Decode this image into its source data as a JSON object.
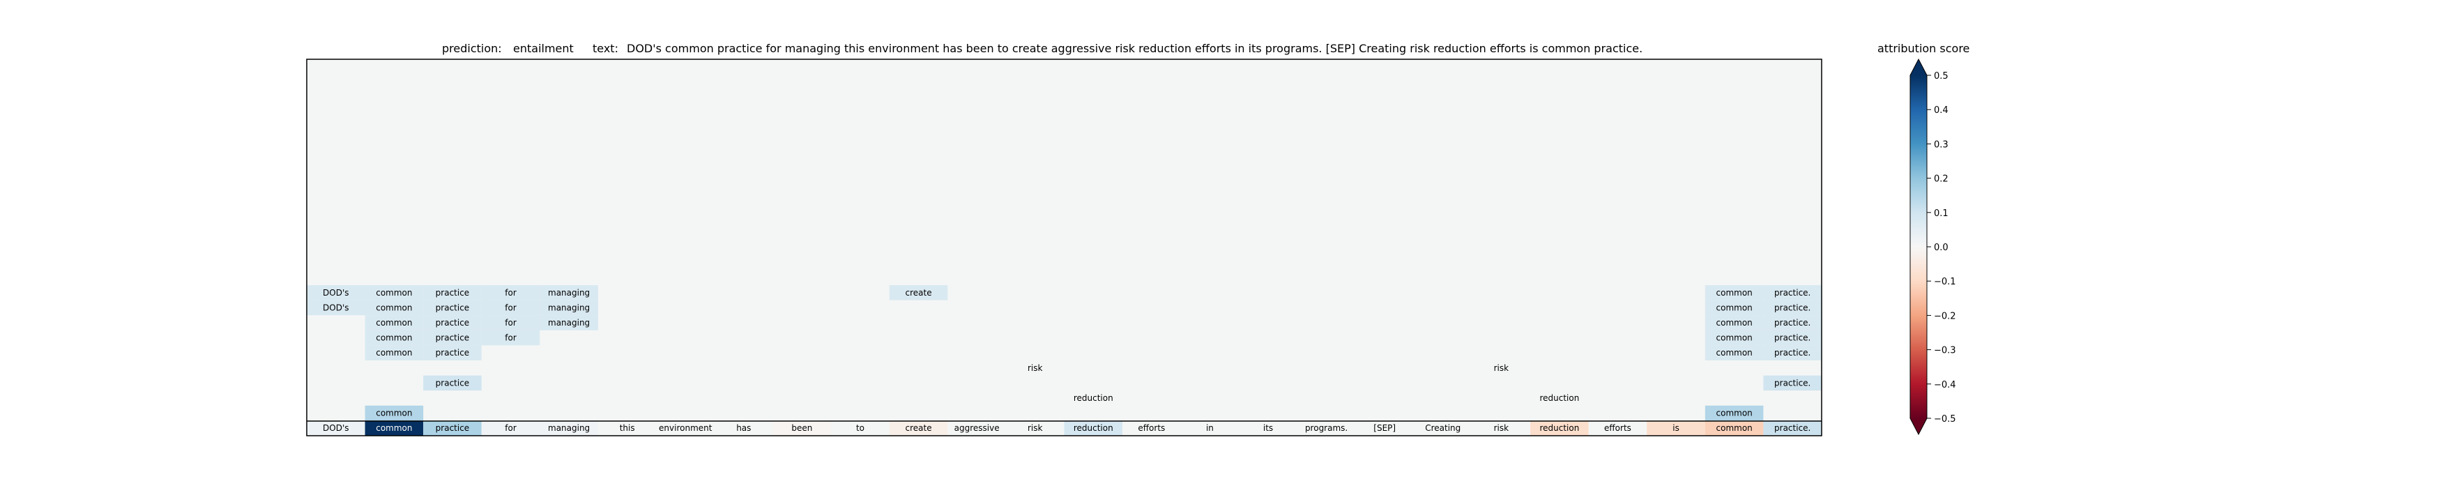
{
  "chart_data": {
    "type": "heatmap",
    "title": {
      "prediction_label": "prediction:",
      "prediction": "entailment",
      "text_label": "text:",
      "text": "DOD's common practice for managing this environment has been to create aggressive risk reduction efforts in its programs. [SEP] Creating risk reduction efforts is common practice."
    },
    "tokens": [
      "DOD's",
      "common",
      "practice",
      "for",
      "managing",
      "this",
      "environment",
      "has",
      "been",
      "to",
      "create",
      "aggressive",
      "risk",
      "reduction",
      "efforts",
      "in",
      "its",
      "programs.",
      "[SEP]",
      "Creating",
      "risk",
      "reduction",
      "efforts",
      "is",
      "common",
      "practice."
    ],
    "bottom_row_scores": [
      0.03,
      0.5,
      0.16,
      0.02,
      0.02,
      0.0,
      0.0,
      0.0,
      -0.01,
      0.0,
      -0.03,
      0.0,
      0.0,
      0.09,
      0.0,
      0.0,
      0.0,
      0.0,
      0.0,
      0.0,
      0.0,
      -0.09,
      0.0,
      -0.09,
      -0.12,
      0.11
    ],
    "step_rows": [
      {
        "step": 1,
        "cells": [
          {
            "token": 0,
            "text": "DOD's",
            "score": 0.08
          },
          {
            "token": 1,
            "text": "common",
            "score": 0.08
          },
          {
            "token": 2,
            "text": "practice",
            "score": 0.08
          },
          {
            "token": 3,
            "text": "for",
            "score": 0.08
          },
          {
            "token": 4,
            "text": "managing",
            "score": 0.08
          },
          {
            "token": 10,
            "text": "create",
            "score": 0.08
          },
          {
            "token": 24,
            "text": "common",
            "score": 0.08
          },
          {
            "token": 25,
            "text": "practice.",
            "score": 0.08
          }
        ]
      },
      {
        "step": 2,
        "cells": [
          {
            "token": 0,
            "text": "DOD's",
            "score": 0.08
          },
          {
            "token": 1,
            "text": "common",
            "score": 0.08
          },
          {
            "token": 2,
            "text": "practice",
            "score": 0.08
          },
          {
            "token": 3,
            "text": "for",
            "score": 0.08
          },
          {
            "token": 4,
            "text": "managing",
            "score": 0.08
          },
          {
            "token": 24,
            "text": "common",
            "score": 0.08
          },
          {
            "token": 25,
            "text": "practice.",
            "score": 0.08
          }
        ]
      },
      {
        "step": 3,
        "cells": [
          {
            "token": 1,
            "text": "common",
            "score": 0.08
          },
          {
            "token": 2,
            "text": "practice",
            "score": 0.08
          },
          {
            "token": 3,
            "text": "for",
            "score": 0.08
          },
          {
            "token": 4,
            "text": "managing",
            "score": 0.08
          },
          {
            "token": 24,
            "text": "common",
            "score": 0.08
          },
          {
            "token": 25,
            "text": "practice.",
            "score": 0.08
          }
        ]
      },
      {
        "step": 4,
        "cells": [
          {
            "token": 1,
            "text": "common",
            "score": 0.08
          },
          {
            "token": 2,
            "text": "practice",
            "score": 0.08
          },
          {
            "token": 3,
            "text": "for",
            "score": 0.08
          },
          {
            "token": 24,
            "text": "common",
            "score": 0.08
          },
          {
            "token": 25,
            "text": "practice.",
            "score": 0.08
          }
        ]
      },
      {
        "step": 5,
        "cells": [
          {
            "token": 1,
            "text": "common",
            "score": 0.08
          },
          {
            "token": 2,
            "text": "practice",
            "score": 0.08
          },
          {
            "token": 24,
            "text": "common",
            "score": 0.08
          },
          {
            "token": 25,
            "text": "practice.",
            "score": 0.08
          }
        ]
      },
      {
        "step": 6,
        "cells": [
          {
            "token": 12,
            "text": "risk",
            "score": 0.0
          },
          {
            "token": 20,
            "text": "risk",
            "score": 0.0
          }
        ]
      },
      {
        "step": 7,
        "cells": [
          {
            "token": 2,
            "text": "practice",
            "score": 0.1
          },
          {
            "token": 25,
            "text": "practice.",
            "score": 0.1
          }
        ]
      },
      {
        "step": 8,
        "cells": [
          {
            "token": 13,
            "text": "reduction",
            "score": 0.0
          },
          {
            "token": 21,
            "text": "reduction",
            "score": 0.0
          }
        ]
      },
      {
        "step": 9,
        "cells": [
          {
            "token": 1,
            "text": "common",
            "score": 0.15
          },
          {
            "token": 24,
            "text": "common",
            "score": 0.15
          }
        ]
      }
    ],
    "colorbar": {
      "label": "attribution score",
      "range": [
        -0.5,
        0.5
      ],
      "ticks": [
        "0.5",
        "0.4",
        "0.3",
        "0.2",
        "0.1",
        "0.0",
        "−0.1",
        "−0.2",
        "−0.3",
        "−0.4",
        "−0.5"
      ],
      "colormap": "RdBu diverging",
      "negative_color": "#67001f",
      "neutral_color": "#f7f7f7",
      "positive_color": "#053061"
    },
    "background_color": "#f4f6f5"
  }
}
